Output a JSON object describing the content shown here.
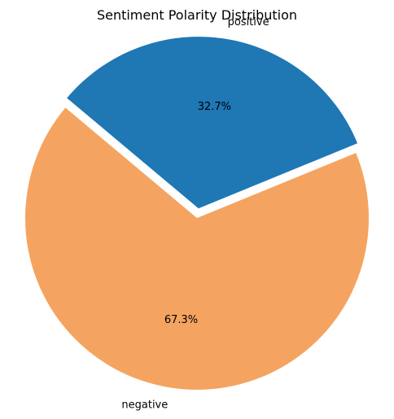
{
  "chart_data": {
    "type": "pie",
    "title": "Sentiment Polarity Distribution",
    "labels": [
      "positive",
      "negative"
    ],
    "values": [
      32.7,
      67.3
    ],
    "percent_labels": [
      "32.7%",
      "67.3%"
    ],
    "colors": [
      "#1f77b4",
      "#f4a460"
    ],
    "exploded": [
      true,
      false
    ],
    "start_angle_deg": 140,
    "direction": "clockwise"
  }
}
